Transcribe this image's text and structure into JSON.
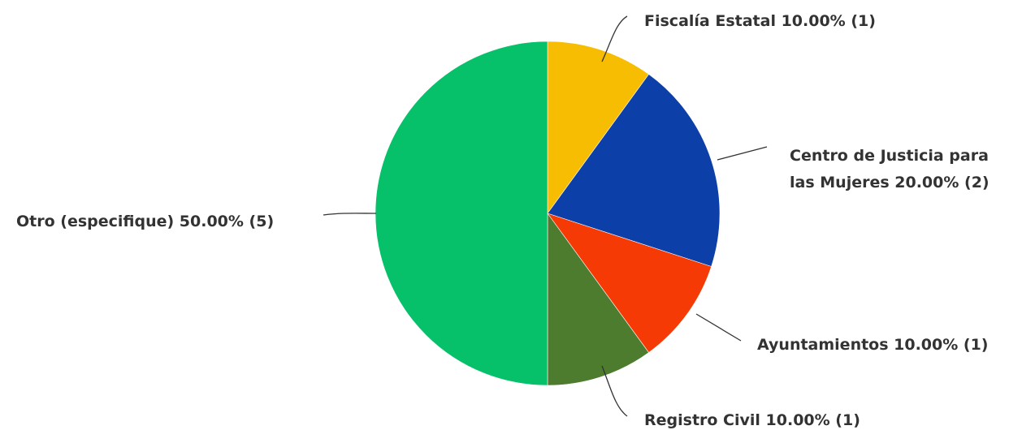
{
  "chart_data": {
    "type": "pie",
    "slices": [
      {
        "name": "Fiscalía Estatal",
        "label_lines": [
          "Fiscalía Estatal 10.00% (1)"
        ],
        "value": 10.0,
        "count": 1,
        "color": "#f7bd02"
      },
      {
        "name": "Centro de Justicia para las Mujeres",
        "label_lines": [
          "Centro de Justicia para",
          "las Mujeres 20.00% (2)"
        ],
        "value": 20.0,
        "count": 2,
        "color": "#0d3fa8"
      },
      {
        "name": "Ayuntamientos",
        "label_lines": [
          "Ayuntamientos 10.00% (1)"
        ],
        "value": 10.0,
        "count": 1,
        "color": "#f53a05"
      },
      {
        "name": "Registro Civil",
        "label_lines": [
          "Registro Civil 10.00% (1)"
        ],
        "value": 10.0,
        "count": 1,
        "color": "#4e7c2f"
      },
      {
        "name": "Otro (especifique)",
        "label_lines": [
          "Otro (especifique) 50.00% (5)"
        ],
        "value": 50.0,
        "count": 5,
        "color": "#06c16a"
      }
    ],
    "start": "12 o'clock",
    "direction": "clockwise",
    "legend": "none"
  }
}
